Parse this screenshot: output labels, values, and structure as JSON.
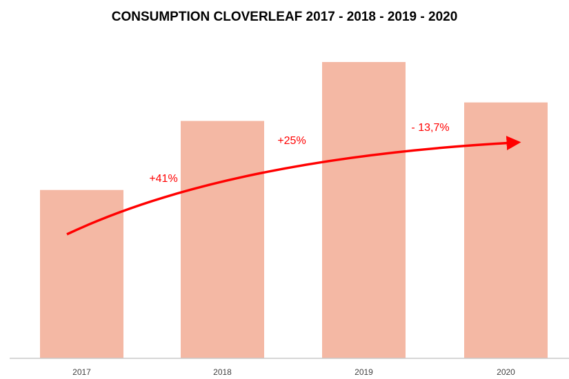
{
  "chart_data": {
    "type": "bar",
    "title": "CONSUMPTION CLOVERLEAF 2017 - 2018 - 2019 - 2020",
    "categories": [
      "2017",
      "2018",
      "2019",
      "2020"
    ],
    "values": [
      100,
      141,
      176,
      152
    ],
    "value_note": "relative index, 2017 = 100 (no y-axis shown)",
    "xlabel": "",
    "ylabel": "",
    "ylim": [
      0,
      176
    ],
    "grid": false,
    "legend": "none",
    "bar_color": "#f4b8a4",
    "trend_arrow_color": "#ff0000",
    "annotations": [
      "+41%",
      "+25%",
      "- 13,7%"
    ]
  }
}
